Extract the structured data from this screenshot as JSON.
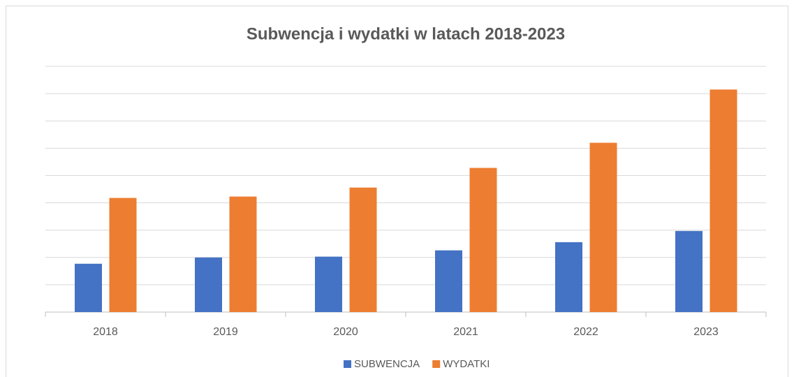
{
  "chart_data": {
    "type": "bar",
    "title": "Subwencja i wydatki w latach 2018-2023",
    "categories": [
      "2018",
      "2019",
      "2020",
      "2021",
      "2022",
      "2023"
    ],
    "series": [
      {
        "name": "SUBWENCJA",
        "color": "#4472c4",
        "values": [
          1.77,
          2.0,
          2.03,
          2.26,
          2.56,
          2.97
        ]
      },
      {
        "name": "WYDATKI",
        "color": "#ed7d31",
        "values": [
          4.18,
          4.23,
          4.56,
          5.28,
          6.2,
          8.15
        ]
      }
    ],
    "ylim": [
      0,
      9
    ],
    "yticks": [
      0,
      1,
      2,
      3,
      4,
      5,
      6,
      7,
      8,
      9
    ],
    "grid": true,
    "legend": "bottom"
  }
}
